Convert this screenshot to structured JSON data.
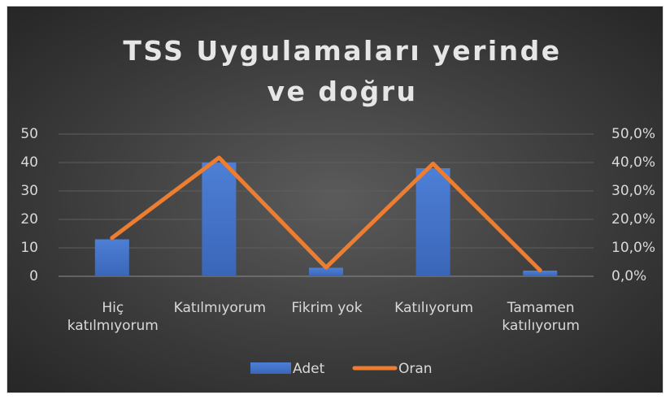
{
  "chart_data": {
    "type": "bar_line",
    "title": "TSS Uygulamaları yerinde ve doğru",
    "categories": [
      "Hiç katılmıyorum",
      "Katılmıyorum",
      "Fikrim yok",
      "Katılıyorum",
      "Tamamen katılıyorum"
    ],
    "series": [
      {
        "name": "Adet",
        "color": "#4472c4",
        "type": "bar",
        "values": [
          13,
          40,
          3,
          38,
          2
        ]
      },
      {
        "name": "Oran",
        "color": "#ed7d31",
        "type": "line",
        "axis": "y2",
        "values": [
          13.5,
          41.7,
          3.1,
          39.6,
          2.1
        ]
      }
    ],
    "ylim": [
      0,
      50
    ],
    "yticks": [
      0,
      10,
      20,
      30,
      40,
      50
    ],
    "y2lim": [
      0,
      50
    ],
    "y2ticks": [
      {
        "value": 0,
        "label": "0,0%"
      },
      {
        "value": 10,
        "label": "10,0%"
      },
      {
        "value": 20,
        "label": "20,0%"
      },
      {
        "value": 30,
        "label": "30,0%"
      },
      {
        "value": 40,
        "label": "40,0%"
      },
      {
        "value": 50,
        "label": "50,0%"
      }
    ],
    "grid": true,
    "legend": "bottom"
  }
}
